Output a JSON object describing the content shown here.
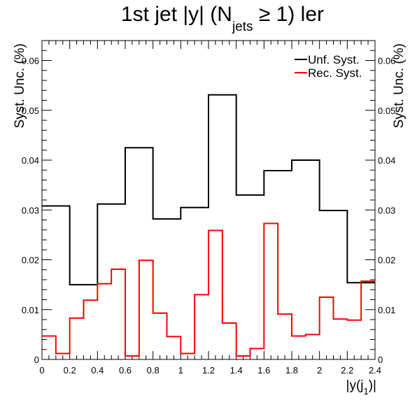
{
  "chart_data": {
    "type": "line",
    "title": {
      "prefix": "1st jet |y| (N",
      "subscript": "jets",
      "suffix": " ≥ 1) ler"
    },
    "xlabel": {
      "main": "|y(j",
      "subscript": "1",
      "end": ")|"
    },
    "ylabel": "Syst. Unc. (%)",
    "xlim": [
      0,
      2.4
    ],
    "ylim": [
      0,
      0.064
    ],
    "xticks": [
      "0",
      "0.2",
      "0.4",
      "0.6",
      "0.8",
      "1",
      "1.2",
      "1.4",
      "1.6",
      "1.8",
      "2",
      "2.2",
      "2.4"
    ],
    "yticks": [
      "0",
      "0.01",
      "0.02",
      "0.03",
      "0.04",
      "0.05",
      "0.06"
    ],
    "grid": false,
    "legend_position": "top-right",
    "series": [
      {
        "name": "Unf. Syst.",
        "color": "#000000",
        "bin_edges": [
          0,
          0.2,
          0.4,
          0.6,
          0.8,
          1.0,
          1.2,
          1.4,
          1.6,
          1.8,
          2.0,
          2.2,
          2.4
        ],
        "values": [
          0.0308,
          0.015,
          0.0312,
          0.0425,
          0.0282,
          0.0305,
          0.0531,
          0.033,
          0.0379,
          0.04,
          0.0299,
          0.0154
        ]
      },
      {
        "name": "Rec. Syst.",
        "color": "#ff0000",
        "bin_edges": [
          0,
          0.1,
          0.2,
          0.3,
          0.4,
          0.5,
          0.6,
          0.7,
          0.8,
          0.9,
          1.0,
          1.1,
          1.2,
          1.3,
          1.4,
          1.5,
          1.6,
          1.7,
          1.8,
          1.9,
          2.0,
          2.1,
          2.2,
          2.3,
          2.4
        ],
        "values": [
          0.0047,
          0.0012,
          0.0083,
          0.0119,
          0.0152,
          0.0181,
          0.0007,
          0.0199,
          0.0093,
          0.0046,
          0.0012,
          0.013,
          0.0259,
          0.0073,
          0.0007,
          0.0022,
          0.0273,
          0.0091,
          0.0047,
          0.005,
          0.0125,
          0.0081,
          0.0079,
          0.0157
        ]
      }
    ]
  }
}
